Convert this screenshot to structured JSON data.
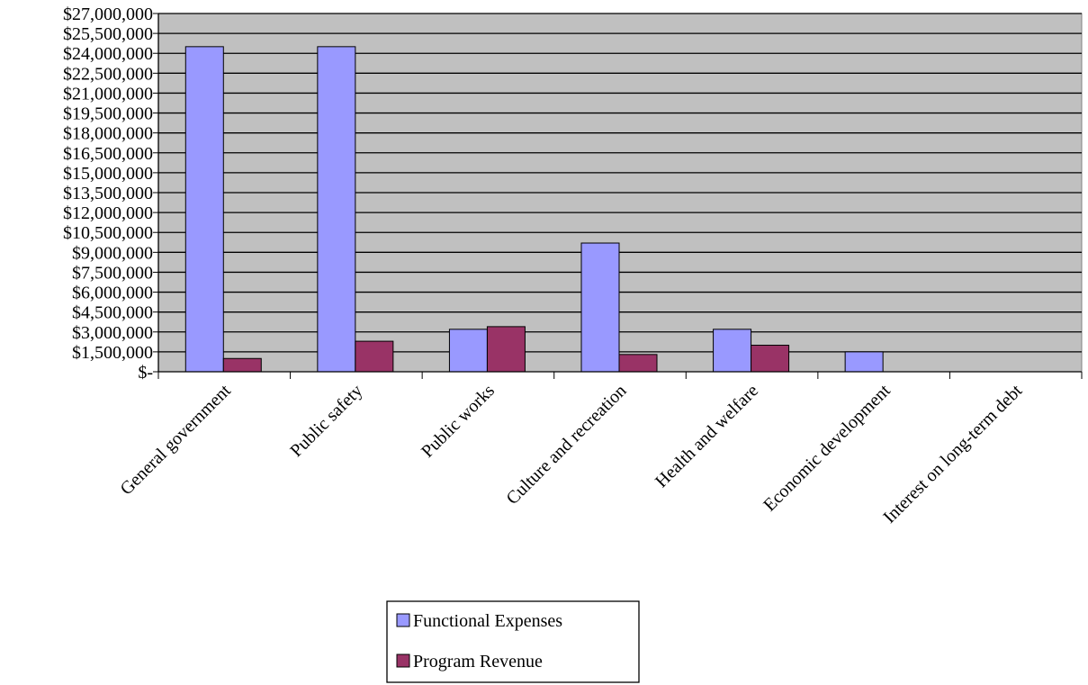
{
  "chart_data": {
    "type": "bar",
    "title": "",
    "xlabel": "",
    "ylabel": "",
    "ylim": [
      0,
      27000000
    ],
    "y_ticks": [
      {
        "value": 0,
        "label": "$-"
      },
      {
        "value": 1500000,
        "label": "$1,500,000"
      },
      {
        "value": 3000000,
        "label": "$3,000,000"
      },
      {
        "value": 4500000,
        "label": "$4,500,000"
      },
      {
        "value": 6000000,
        "label": "$6,000,000"
      },
      {
        "value": 7500000,
        "label": "$7,500,000"
      },
      {
        "value": 9000000,
        "label": "$9,000,000"
      },
      {
        "value": 10500000,
        "label": "$10,500,000"
      },
      {
        "value": 12000000,
        "label": "$12,000,000"
      },
      {
        "value": 13500000,
        "label": "$13,500,000"
      },
      {
        "value": 15000000,
        "label": "$15,000,000"
      },
      {
        "value": 16500000,
        "label": "$16,500,000"
      },
      {
        "value": 18000000,
        "label": "$18,000,000"
      },
      {
        "value": 19500000,
        "label": "$19,500,000"
      },
      {
        "value": 21000000,
        "label": "$21,000,000"
      },
      {
        "value": 22500000,
        "label": "$22,500,000"
      },
      {
        "value": 24000000,
        "label": "$24,000,000"
      },
      {
        "value": 25500000,
        "label": "$25,500,000"
      },
      {
        "value": 27000000,
        "label": "$27,000,000"
      }
    ],
    "categories": [
      "General  government",
      "Public safety",
      "Public works",
      "Culture and recreation",
      "Health and welfare",
      "Economic development",
      "Interest on long-term debt"
    ],
    "series": [
      {
        "name": "Functional Expenses",
        "color": "#9999ff",
        "values": [
          24500000,
          24500000,
          3200000,
          9700000,
          3200000,
          1500000,
          0
        ]
      },
      {
        "name": "Program Revenue",
        "color": "#993366",
        "values": [
          1000000,
          2300000,
          3400000,
          1300000,
          2000000,
          0,
          0
        ]
      }
    ],
    "grid": true,
    "plot_background": "#c0c0c0",
    "legend": "bottom"
  }
}
